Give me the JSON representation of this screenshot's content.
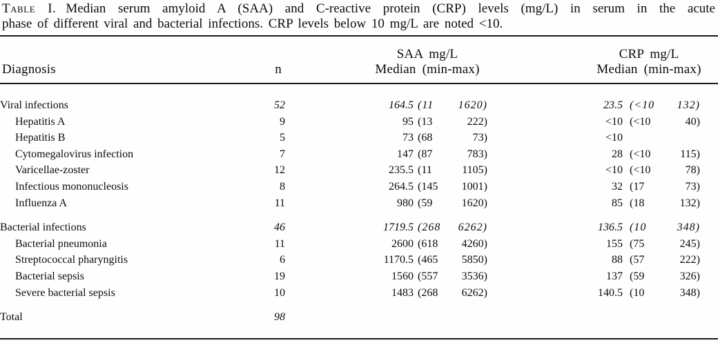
{
  "caption": {
    "label": "Table I.",
    "line1": "Median serum amyloid A (SAA) and C-reactive protein (CRP) levels (mg/L) in serum in the acute",
    "line2": "phase of different viral and bacterial infections. CRP levels below 10 mg/L are noted <10."
  },
  "header": {
    "diagnosis": "Diagnosis",
    "n": "n",
    "saa_line1": "SAA mg/L",
    "saa_line2": "Median (min-max)",
    "crp_line1": "CRP mg/L",
    "crp_line2": "Median (min-max)"
  },
  "rows": [
    {
      "diagnosis": "Viral infections",
      "group": true,
      "indent": false,
      "gap_before": false,
      "n": "52",
      "saa_median": "164.5",
      "saa_min": "(11",
      "saa_max": "1620)",
      "crp_median": "23.5",
      "crp_min": "(<10",
      "crp_max": "132)"
    },
    {
      "diagnosis": "Hepatitis A",
      "group": false,
      "indent": true,
      "gap_before": false,
      "n": "9",
      "saa_median": "95",
      "saa_min": "(13",
      "saa_max": "222)",
      "crp_median": "<10",
      "crp_min": "(<10",
      "crp_max": "40)"
    },
    {
      "diagnosis": "Hepatitis B",
      "group": false,
      "indent": true,
      "gap_before": false,
      "n": "5",
      "saa_median": "73",
      "saa_min": "(68",
      "saa_max": "73)",
      "crp_median": "<10",
      "crp_min": "",
      "crp_max": ""
    },
    {
      "diagnosis": "Cytomegalovirus infection",
      "group": false,
      "indent": true,
      "gap_before": false,
      "n": "7",
      "saa_median": "147",
      "saa_min": "(87",
      "saa_max": "783)",
      "crp_median": "28",
      "crp_min": "(<10",
      "crp_max": "115)"
    },
    {
      "diagnosis": "Varicellae-zoster",
      "group": false,
      "indent": true,
      "gap_before": false,
      "n": "12",
      "saa_median": "235.5",
      "saa_min": "(11",
      "saa_max": "1105)",
      "crp_median": "<10",
      "crp_min": "(<10",
      "crp_max": "78)"
    },
    {
      "diagnosis": "Infectious mononucleosis",
      "group": false,
      "indent": true,
      "gap_before": false,
      "n": "8",
      "saa_median": "264.5",
      "saa_min": "(145",
      "saa_max": "1001)",
      "crp_median": "32",
      "crp_min": "(17",
      "crp_max": "73)"
    },
    {
      "diagnosis": "Influenza A",
      "group": false,
      "indent": true,
      "gap_before": false,
      "n": "11",
      "saa_median": "980",
      "saa_min": "(59",
      "saa_max": "1620)",
      "crp_median": "85",
      "crp_min": "(18",
      "crp_max": "132)"
    },
    {
      "diagnosis": "Bacterial infections",
      "group": true,
      "indent": false,
      "gap_before": true,
      "n": "46",
      "saa_median": "1719.5",
      "saa_min": "(268",
      "saa_max": "6262)",
      "crp_median": "136.5",
      "crp_min": "(10",
      "crp_max": "348)"
    },
    {
      "diagnosis": "Bacterial pneumonia",
      "group": false,
      "indent": true,
      "gap_before": false,
      "n": "11",
      "saa_median": "2600",
      "saa_min": "(618",
      "saa_max": "4260)",
      "crp_median": "155",
      "crp_min": "(75",
      "crp_max": "245)"
    },
    {
      "diagnosis": "Streptococcal pharyngitis",
      "group": false,
      "indent": true,
      "gap_before": false,
      "n": "6",
      "saa_median": "1170.5",
      "saa_min": "(465",
      "saa_max": "5850)",
      "crp_median": "88",
      "crp_min": "(57",
      "crp_max": "222)"
    },
    {
      "diagnosis": "Bacterial sepsis",
      "group": false,
      "indent": true,
      "gap_before": false,
      "n": "19",
      "saa_median": "1560",
      "saa_min": "(557",
      "saa_max": "3536)",
      "crp_median": "137",
      "crp_min": "(59",
      "crp_max": "326)"
    },
    {
      "diagnosis": "Severe bacterial sepsis",
      "group": false,
      "indent": true,
      "gap_before": false,
      "n": "10",
      "saa_median": "1483",
      "saa_min": "(268",
      "saa_max": "6262)",
      "crp_median": "140.5",
      "crp_min": "(10",
      "crp_max": "348)"
    },
    {
      "diagnosis": "Total",
      "group": true,
      "indent": false,
      "gap_before": true,
      "n": "98",
      "saa_median": "",
      "saa_min": "",
      "saa_max": "",
      "crp_median": "",
      "crp_min": "",
      "crp_max": ""
    }
  ]
}
